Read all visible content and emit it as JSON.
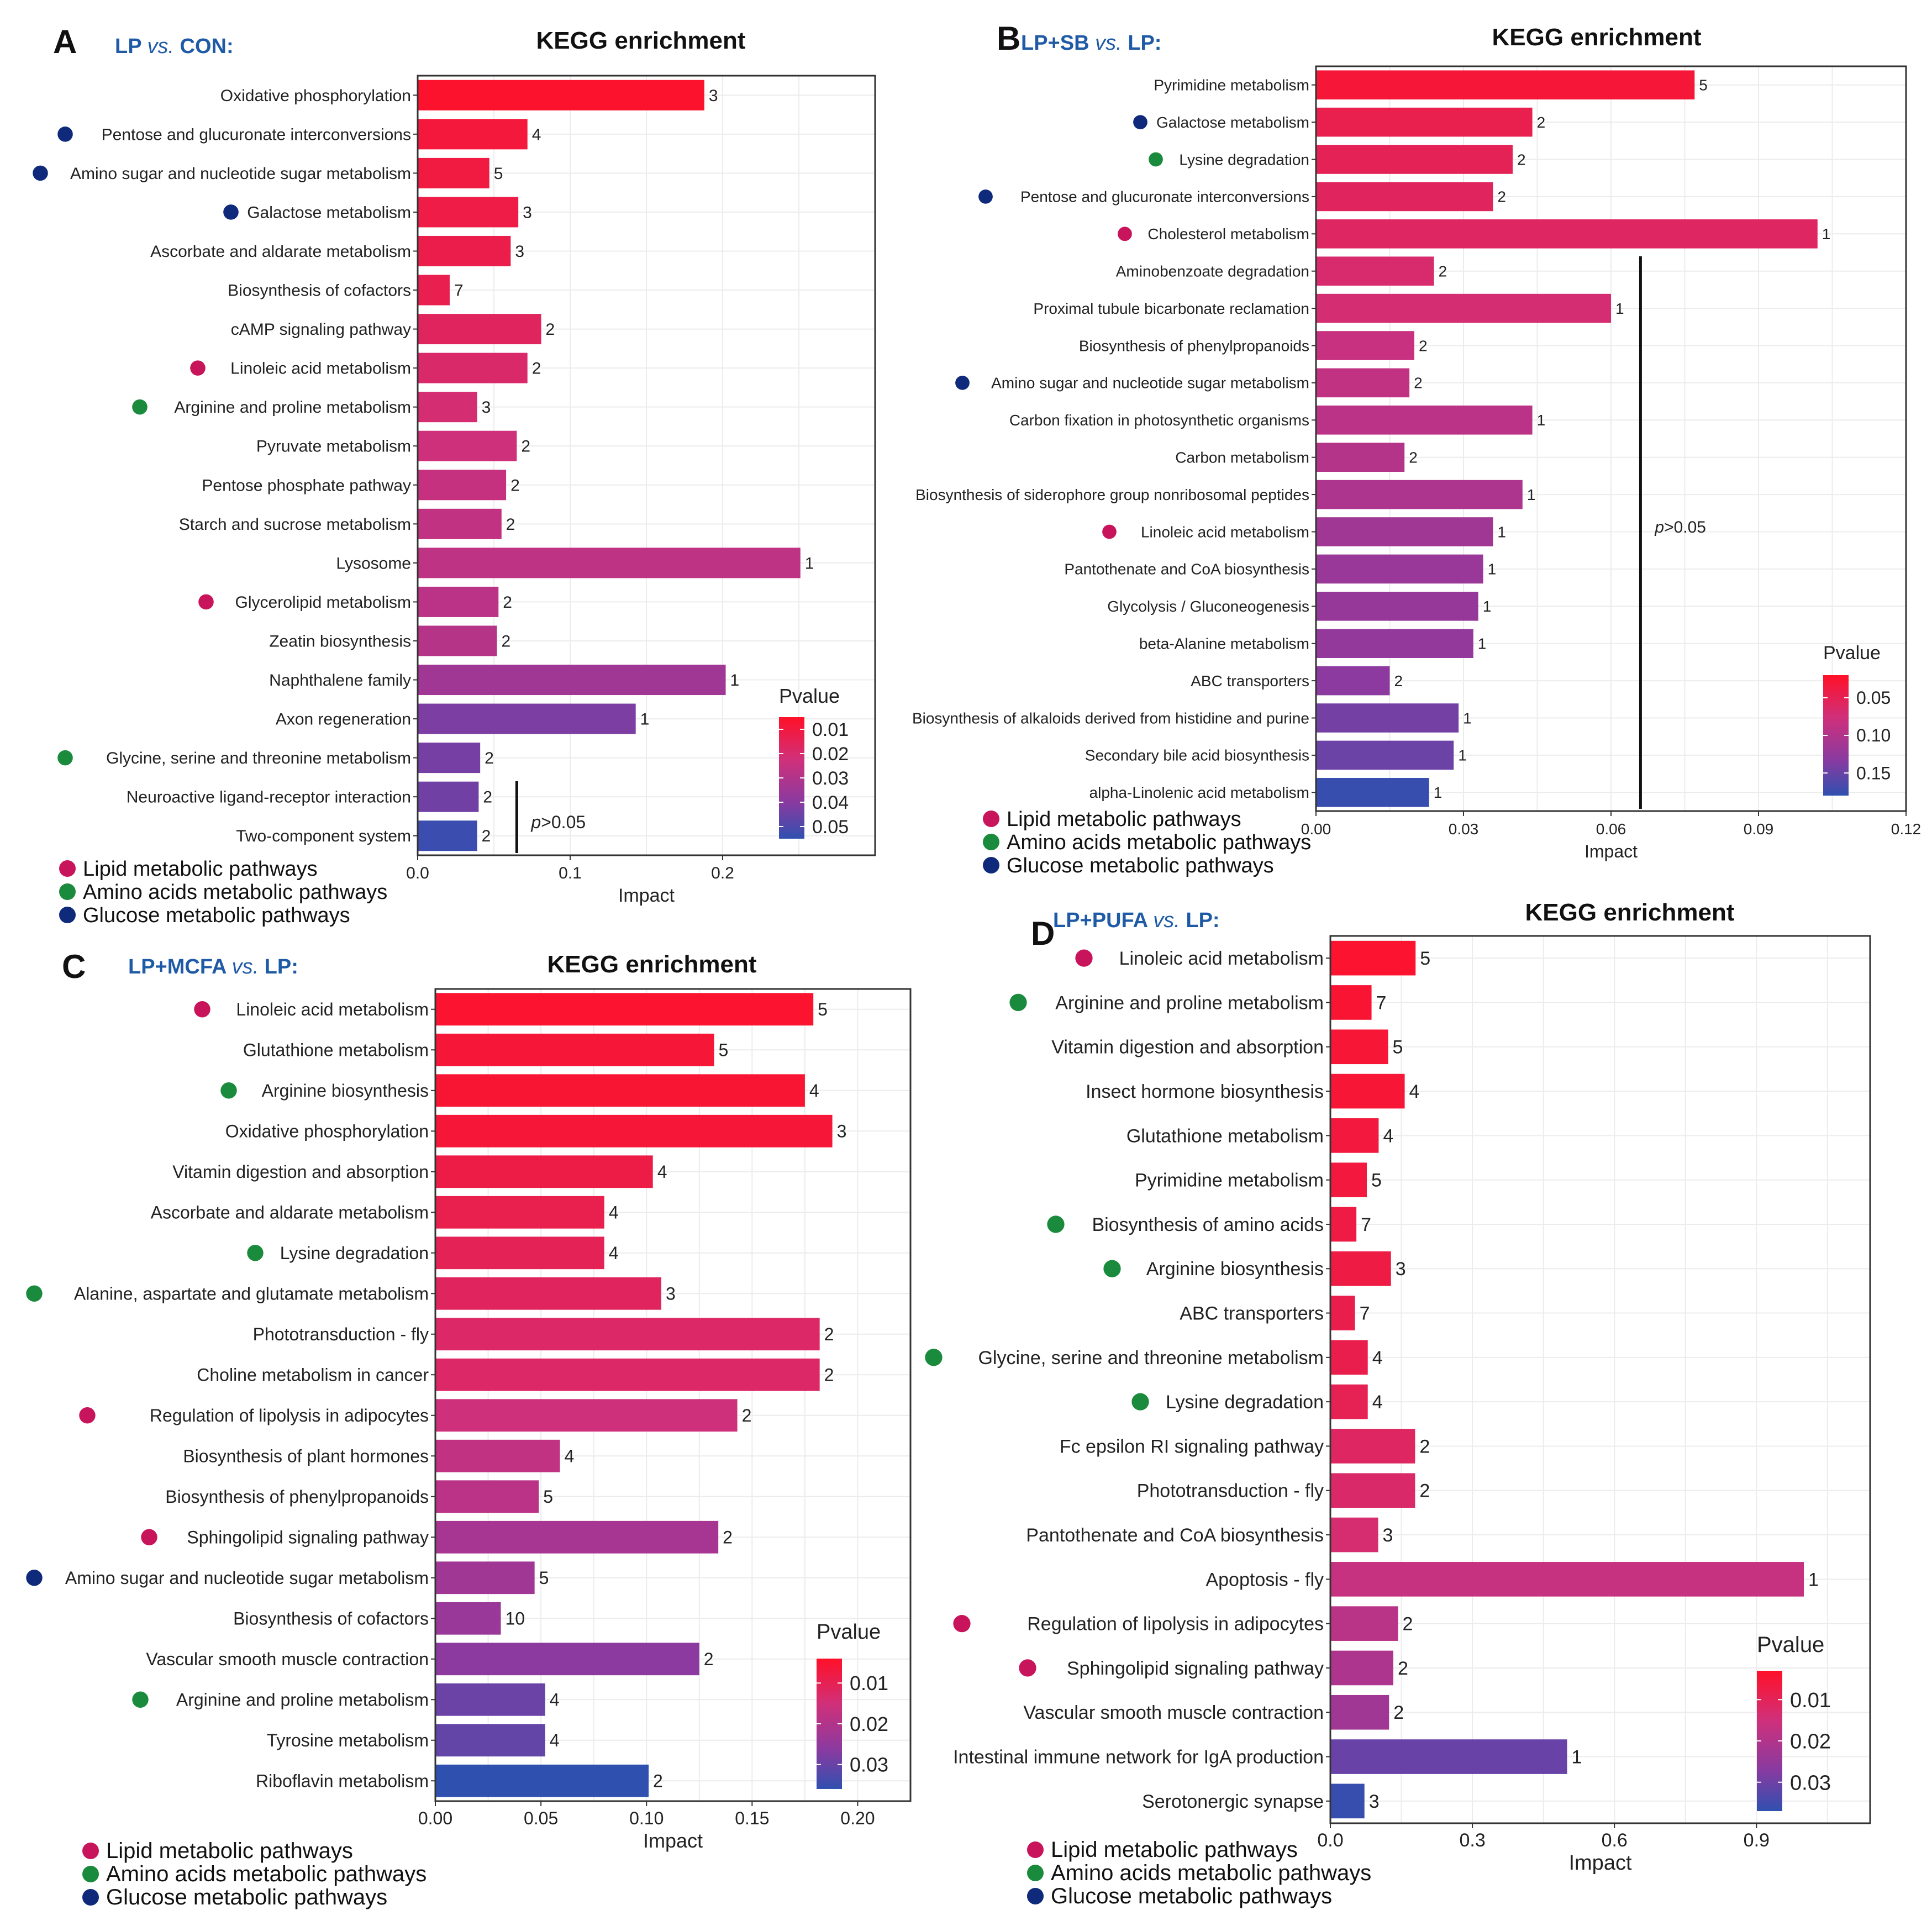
{
  "figure": {
    "legend_items": [
      {
        "label": "Lipid metabolic pathways",
        "color": "#c8145a"
      },
      {
        "label": "Amino acids metabolic pathways",
        "color": "#1a8a3c"
      },
      {
        "label": "Glucose metabolic pathways",
        "color": "#0f2a7a"
      }
    ],
    "pvalue_title": "Pvalue",
    "pvalue_gradient": [
      "#ff1028",
      "#d0307a",
      "#8a3aa0",
      "#3050b0"
    ]
  },
  "chart_data": [
    {
      "panel_letter": "A",
      "comparison_pre": "LP ",
      "comparison_vs": "vs.",
      "comparison_post": " CON:",
      "title": "KEGG enrichment",
      "type": "bar",
      "orientation": "horizontal",
      "xlabel": "Impact",
      "xlim": [
        0,
        0.3
      ],
      "xticks": [
        0.0,
        0.1,
        0.2
      ],
      "xtick_labels": [
        "0.0",
        "0.1",
        "0.2"
      ],
      "pvalue_legend": [
        0.01,
        0.02,
        0.03,
        0.04,
        0.05
      ],
      "pvalue_labels": [
        "0.01",
        "0.02",
        "0.03",
        "0.04",
        "0.05"
      ],
      "pvalue_range": [
        0.005,
        0.055
      ],
      "threshold": {
        "impact": 0.065,
        "label_p": "p",
        "label_rest": ">0.05",
        "from_category": "Neuroactive ligand-receptor interaction"
      },
      "categories": [
        "Oxidative phosphorylation",
        "Pentose and glucuronate interconversions",
        "Amino sugar and nucleotide sugar metabolism",
        "Galactose metabolism",
        "Ascorbate and aldarate metabolism",
        "Biosynthesis of cofactors",
        "cAMP signaling pathway",
        "Linoleic acid metabolism",
        "Arginine and proline metabolism",
        "Pyruvate metabolism",
        "Pentose phosphate pathway",
        "Starch and sucrose metabolism",
        "Lysosome",
        "Glycerolipid metabolism",
        "Zeatin biosynthesis",
        "Naphthalene family",
        "Axon regeneration",
        "Glycine, serine and threonine metabolism",
        "Neuroactive ligand-receptor interaction",
        "Two-component system"
      ],
      "impact": [
        0.188,
        0.072,
        0.047,
        0.066,
        0.061,
        0.021,
        0.081,
        0.072,
        0.039,
        0.065,
        0.058,
        0.055,
        0.251,
        0.053,
        0.052,
        0.202,
        0.143,
        0.041,
        0.04,
        0.039
      ],
      "hits": [
        "3",
        "4",
        "5",
        "3",
        "3",
        "7",
        "2",
        "2",
        "3",
        "2",
        "2",
        "2",
        "1",
        "2",
        "2",
        "1",
        "1",
        "2",
        "2",
        "2"
      ],
      "pvalue": [
        0.006,
        0.009,
        0.01,
        0.011,
        0.012,
        0.013,
        0.016,
        0.018,
        0.02,
        0.022,
        0.024,
        0.025,
        0.026,
        0.027,
        0.028,
        0.033,
        0.041,
        0.042,
        0.043,
        0.053
      ],
      "pathway_class": [
        "",
        "glucose",
        "glucose",
        "glucose",
        "",
        "",
        "",
        "lipid",
        "amino",
        "",
        "",
        "",
        "",
        "lipid",
        "",
        "",
        "",
        "amino",
        "",
        ""
      ]
    },
    {
      "panel_letter": "B",
      "comparison_pre": "LP+SB ",
      "comparison_vs": "vs.",
      "comparison_post": " LP:",
      "title": "KEGG enrichment",
      "type": "bar",
      "orientation": "horizontal",
      "xlabel": "Impact",
      "xlim": [
        0,
        0.12
      ],
      "xticks": [
        0.0,
        0.03,
        0.06,
        0.09,
        0.12
      ],
      "xtick_labels": [
        "0.00",
        "0.03",
        "0.06",
        "0.09",
        "0.12"
      ],
      "pvalue_legend": [
        0.05,
        0.1,
        0.15
      ],
      "pvalue_labels": [
        "0.05",
        "0.10",
        "0.15"
      ],
      "pvalue_range": [
        0.02,
        0.18
      ],
      "threshold": {
        "impact": 0.066,
        "label_p": "p",
        "label_rest": ">0.05",
        "from_category": "Aminobenzoate degradation"
      },
      "categories": [
        "Pyrimidine metabolism",
        "Galactose metabolism",
        "Lysine degradation",
        "Pentose and glucuronate interconversions",
        "Cholesterol metabolism",
        "Aminobenzoate degradation",
        "Proximal tubule bicarbonate reclamation",
        "Biosynthesis of phenylpropanoids",
        "Amino sugar and nucleotide sugar metabolism",
        "Carbon fixation in photosynthetic organisms",
        "Carbon metabolism",
        "Biosynthesis of siderophore group nonribosomal peptides",
        "Linoleic acid metabolism",
        "Pantothenate and CoA biosynthesis",
        "Glycolysis / Gluconeogenesis",
        "beta-Alanine metabolism",
        "ABC transporters",
        "Biosynthesis of alkaloids derived from histidine and purine",
        "Secondary bile acid biosynthesis",
        "alpha-Linolenic acid metabolism"
      ],
      "impact": [
        0.077,
        0.044,
        0.04,
        0.036,
        0.102,
        0.024,
        0.06,
        0.02,
        0.019,
        0.044,
        0.018,
        0.042,
        0.036,
        0.034,
        0.033,
        0.032,
        0.015,
        0.029,
        0.028,
        0.023
      ],
      "hits": [
        "5",
        "2",
        "2",
        "2",
        "1",
        "2",
        "1",
        "2",
        "2",
        "1",
        "2",
        "1",
        "1",
        "1",
        "1",
        "1",
        "2",
        "1",
        "1",
        "1"
      ],
      "pvalue": [
        0.03,
        0.045,
        0.05,
        0.055,
        0.058,
        0.065,
        0.068,
        0.08,
        0.085,
        0.09,
        0.095,
        0.1,
        0.11,
        0.115,
        0.118,
        0.12,
        0.125,
        0.14,
        0.145,
        0.175
      ],
      "pathway_class": [
        "",
        "glucose",
        "amino",
        "glucose",
        "lipid",
        "",
        "",
        "",
        "glucose",
        "",
        "",
        "",
        "lipid",
        "",
        "",
        "",
        "",
        "",
        "",
        ""
      ]
    },
    {
      "panel_letter": "C",
      "comparison_pre": "LP+MCFA ",
      "comparison_vs": "vs.",
      "comparison_post": " LP:",
      "title": "KEGG enrichment",
      "type": "bar",
      "orientation": "horizontal",
      "xlabel": "Impact",
      "xlim": [
        0,
        0.225
      ],
      "xticks": [
        0.0,
        0.05,
        0.1,
        0.15,
        0.2
      ],
      "xtick_labels": [
        "0.00",
        "0.05",
        "0.10",
        "0.15",
        "0.20"
      ],
      "pvalue_legend": [
        0.01,
        0.02,
        0.03
      ],
      "pvalue_labels": [
        "0.01",
        "0.02",
        "0.03"
      ],
      "pvalue_range": [
        0.004,
        0.036
      ],
      "threshold": null,
      "categories": [
        "Linoleic acid metabolism",
        "Glutathione metabolism",
        "Arginine biosynthesis",
        "Oxidative phosphorylation",
        "Vitamin digestion and absorption",
        "Ascorbate and aldarate metabolism",
        "Lysine degradation",
        "Alanine, aspartate and glutamate metabolism",
        "Phototransduction - fly",
        "Choline metabolism in cancer",
        "Regulation of lipolysis in adipocytes",
        "Biosynthesis of plant hormones",
        "Biosynthesis of phenylpropanoids",
        "Sphingolipid signaling pathway",
        "Amino sugar and nucleotide sugar metabolism",
        "Biosynthesis of cofactors",
        "Vascular smooth muscle contraction",
        "Arginine and proline metabolism",
        "Tyrosine metabolism",
        "Riboflavin metabolism"
      ],
      "impact": [
        0.179,
        0.132,
        0.175,
        0.188,
        0.103,
        0.08,
        0.08,
        0.107,
        0.182,
        0.182,
        0.143,
        0.059,
        0.049,
        0.134,
        0.047,
        0.031,
        0.125,
        0.052,
        0.052,
        0.101
      ],
      "hits": [
        "5",
        "5",
        "4",
        "3",
        "4",
        "4",
        "4",
        "3",
        "2",
        "2",
        "2",
        "4",
        "5",
        "2",
        "5",
        "10",
        "2",
        "4",
        "4",
        "2"
      ],
      "pvalue": [
        0.005,
        0.006,
        0.0055,
        0.006,
        0.008,
        0.009,
        0.01,
        0.011,
        0.012,
        0.012,
        0.015,
        0.017,
        0.018,
        0.021,
        0.022,
        0.023,
        0.025,
        0.029,
        0.03,
        0.036
      ],
      "pathway_class": [
        "lipid",
        "",
        "amino",
        "",
        "",
        "",
        "amino",
        "amino",
        "",
        "",
        "lipid",
        "",
        "",
        "lipid",
        "glucose",
        "",
        "",
        "amino",
        "",
        ""
      ]
    },
    {
      "panel_letter": "D",
      "comparison_pre": "LP+PUFA ",
      "comparison_vs": "vs.",
      "comparison_post": " LP:",
      "title": "KEGG enrichment",
      "type": "bar",
      "orientation": "horizontal",
      "xlabel": "Impact",
      "xlim": [
        0,
        1.14
      ],
      "xticks": [
        0.0,
        0.3,
        0.6,
        0.9
      ],
      "xtick_labels": [
        "0.0",
        "0.3",
        "0.6",
        "0.9"
      ],
      "pvalue_legend": [
        0.01,
        0.02,
        0.03
      ],
      "pvalue_labels": [
        "0.01",
        "0.02",
        "0.03"
      ],
      "pvalue_range": [
        0.003,
        0.037
      ],
      "threshold": null,
      "categories": [
        "Linoleic acid metabolism",
        "Arginine and proline metabolism",
        "Vitamin digestion and absorption",
        "Insect hormone biosynthesis",
        "Glutathione metabolism",
        "Pyrimidine metabolism",
        "Biosynthesis of amino acids",
        "Arginine biosynthesis",
        "ABC transporters",
        "Glycine, serine and threonine metabolism",
        "Lysine degradation",
        "Fc epsilon RI signaling pathway",
        "Phototransduction - fly",
        "Pantothenate and CoA biosynthesis",
        "Apoptosis - fly",
        "Regulation of lipolysis in adipocytes",
        "Sphingolipid signaling pathway",
        "Vascular smooth muscle contraction",
        "Intestinal immune network for IgA production",
        "Serotonergic synapse"
      ],
      "impact": [
        0.18,
        0.087,
        0.122,
        0.157,
        0.102,
        0.077,
        0.055,
        0.128,
        0.052,
        0.079,
        0.079,
        0.179,
        0.179,
        0.101,
        1.0,
        0.143,
        0.133,
        0.124,
        0.5,
        0.072
      ],
      "hits": [
        "5",
        "7",
        "5",
        "4",
        "4",
        "5",
        "7",
        "3",
        "7",
        "4",
        "4",
        "2",
        "2",
        "3",
        "1",
        "2",
        "2",
        "2",
        "1",
        "3"
      ],
      "pvalue": [
        0.004,
        0.0045,
        0.005,
        0.005,
        0.006,
        0.006,
        0.007,
        0.007,
        0.008,
        0.008,
        0.009,
        0.011,
        0.012,
        0.013,
        0.016,
        0.018,
        0.02,
        0.022,
        0.03,
        0.036
      ],
      "pathway_class": [
        "lipid",
        "amino",
        "",
        "",
        "",
        "",
        "amino",
        "amino",
        "",
        "amino",
        "amino",
        "",
        "",
        "",
        "",
        "lipid",
        "lipid",
        "",
        "",
        ""
      ]
    }
  ]
}
